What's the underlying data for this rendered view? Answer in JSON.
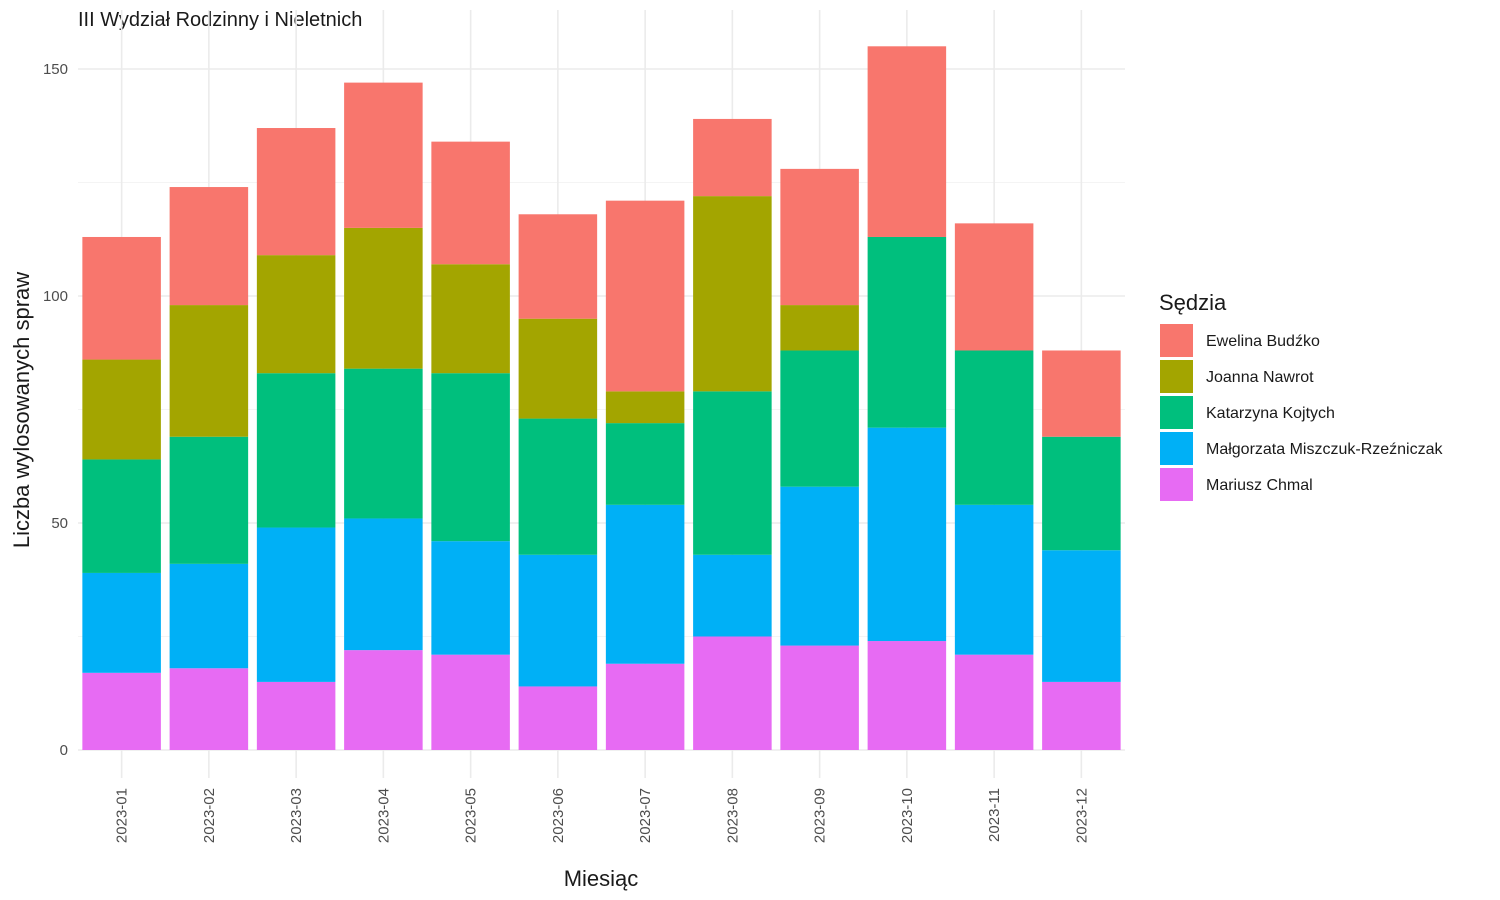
{
  "chart_data": {
    "type": "bar",
    "stacked": true,
    "title": "III Wydział Rodzinny i Nieletnich",
    "xlabel": "Miesiąc",
    "ylabel": "Liczba wylosowanych spraw",
    "ylim": [
      0,
      160
    ],
    "yticks": [
      0,
      50,
      100,
      150
    ],
    "grid": true,
    "legend_title": "Sędzia",
    "legend_position": "right",
    "categories": [
      "2023-01",
      "2023-02",
      "2023-03",
      "2023-04",
      "2023-05",
      "2023-06",
      "2023-07",
      "2023-08",
      "2023-09",
      "2023-10",
      "2023-11",
      "2023-12"
    ],
    "series": [
      {
        "name": "Ewelina Budźko",
        "color": "#F8766D",
        "values": [
          27,
          26,
          28,
          32,
          27,
          23,
          42,
          17,
          30,
          42,
          28,
          19
        ]
      },
      {
        "name": "Joanna Nawrot",
        "color": "#A3A500",
        "values": [
          22,
          29,
          26,
          31,
          24,
          22,
          7,
          43,
          10,
          0,
          0,
          0
        ]
      },
      {
        "name": "Katarzyna Kojtych",
        "color": "#00BF7D",
        "values": [
          25,
          28,
          34,
          33,
          37,
          30,
          18,
          36,
          30,
          42,
          34,
          25
        ]
      },
      {
        "name": "Małgorzata Miszczuk-Rzeźniczak",
        "color": "#00B0F6",
        "values": [
          22,
          23,
          34,
          29,
          25,
          29,
          35,
          18,
          35,
          47,
          33,
          29
        ]
      },
      {
        "name": "Mariusz Chmal",
        "color": "#E76BF3",
        "values": [
          17,
          18,
          15,
          22,
          21,
          14,
          19,
          25,
          23,
          24,
          21,
          15
        ]
      }
    ]
  }
}
